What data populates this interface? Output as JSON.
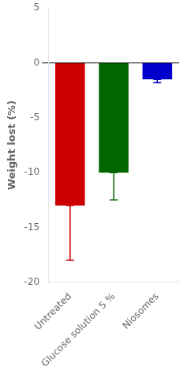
{
  "chart_data": {
    "type": "bar",
    "categories": [
      "Untreated",
      "Glucose solution 5 %",
      "Niosomes"
    ],
    "values": [
      -13.0,
      -10.0,
      -1.5
    ],
    "errors_lower": [
      5.0,
      2.5,
      0.3
    ],
    "errors_upper": [
      0.0,
      0.0,
      0.0
    ],
    "colors": [
      "#cc0000",
      "#006600",
      "#0000cc"
    ],
    "ylabel": "Weight lost (%)",
    "ylim": [
      -20,
      5
    ],
    "yticks": [
      -20,
      -15,
      -10,
      -5,
      0,
      5
    ],
    "grid": false
  }
}
